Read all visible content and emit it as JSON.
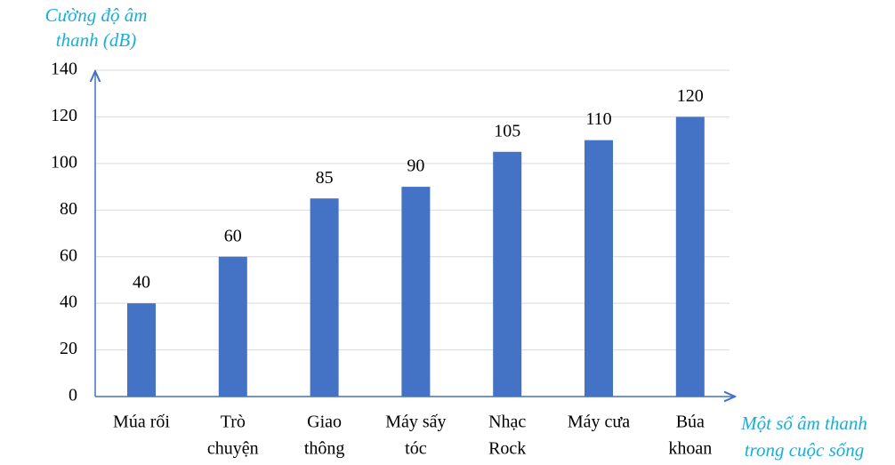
{
  "chart_data": {
    "type": "bar",
    "y_label": [
      "Cường độ âm",
      "thanh (dB)"
    ],
    "x_label": [
      "Một số âm thanh",
      "trong cuộc sống"
    ],
    "categories": [
      [
        "Múa rối"
      ],
      [
        "Trò",
        "chuyện"
      ],
      [
        "Giao",
        "thông"
      ],
      [
        "Máy sấy",
        "tóc"
      ],
      [
        "Nhạc",
        "Rock"
      ],
      [
        "Máy cưa"
      ],
      [
        "Búa",
        "khoan"
      ]
    ],
    "values": [
      40,
      60,
      85,
      90,
      105,
      110,
      120
    ],
    "color": "#4472c4",
    "ylim": [
      0,
      140
    ],
    "yticks": [
      0,
      20,
      40,
      60,
      80,
      100,
      120,
      140
    ],
    "grid": true
  }
}
